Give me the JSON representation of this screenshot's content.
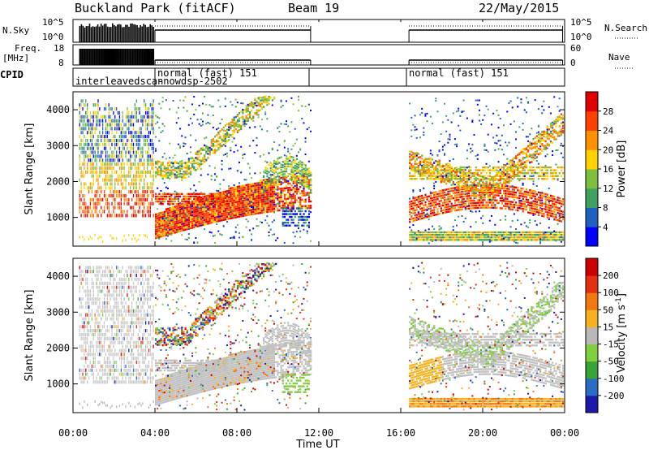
{
  "header": {
    "title": "Buckland Park (fitACF)",
    "beam": "Beam 19",
    "date": "22/May/2015"
  },
  "panels": {
    "nsky": {
      "left_label": "N.Sky",
      "left_ticks": [
        "10^5",
        "10^0"
      ],
      "right_ticks": [
        "10^5",
        "10^0"
      ],
      "right_label": "N.Search"
    },
    "freq": {
      "left_label_1": "Freq.",
      "left_label_2": "[MHz]",
      "left_ticks": [
        "18",
        "8"
      ],
      "right_ticks": [
        "60",
        "0"
      ],
      "right_label": "Nave"
    },
    "cpid": {
      "left_label": "CPID",
      "segments": [
        "interleavedscan",
        "normal (fast) 151",
        "-nowdsp-2502",
        "normal (fast) 151"
      ]
    }
  },
  "chart_data": [
    {
      "type": "heatmap",
      "name": "power",
      "ylabel": "Slant Range [km]",
      "yticks": [
        1000,
        2000,
        3000,
        4000
      ],
      "ylim": [
        200,
        4500
      ],
      "xticks": [
        "00:00",
        "04:00",
        "08:00",
        "12:00",
        "16:00",
        "20:00",
        "00:00"
      ],
      "xlim_hours": [
        0,
        24
      ],
      "colorbar": {
        "label": "Power [dB]",
        "ticks": [
          "4",
          "8",
          "12",
          "16",
          "20",
          "24",
          "28"
        ],
        "colors": [
          "#0000ff",
          "#1f5fbf",
          "#3fa05f",
          "#7fbf3f",
          "#ffd200",
          "#ff9000",
          "#ff4000",
          "#e00000"
        ]
      },
      "data_segments_hours": [
        [
          0.3,
          3.95
        ],
        [
          4.0,
          11.6
        ],
        [
          16.4,
          23.9
        ]
      ]
    },
    {
      "type": "heatmap",
      "name": "velocity",
      "ylabel": "Slant Range [km]",
      "yticks": [
        1000,
        2000,
        3000,
        4000
      ],
      "ylim": [
        200,
        4500
      ],
      "xticks": [
        "00:00",
        "04:00",
        "08:00",
        "12:00",
        "16:00",
        "20:00",
        "00:00"
      ],
      "xlim_hours": [
        0,
        24
      ],
      "xlabel": "Time UT",
      "colorbar": {
        "label": "Velocity [m s",
        "label_exp": "-1",
        "label_end": "]",
        "ticks": [
          "200",
          "100",
          "50",
          "15",
          "-15",
          "-50",
          "-100",
          "-200"
        ],
        "colors": [
          "#1a1aa6",
          "#2b6cc4",
          "#39a339",
          "#7fcf3f",
          "#b8b8b8",
          "#f6b21e",
          "#f07a10",
          "#e23010",
          "#cc0000"
        ]
      },
      "data_segments_hours": [
        [
          0.3,
          3.95
        ],
        [
          4.0,
          11.6
        ],
        [
          16.4,
          23.9
        ]
      ]
    }
  ]
}
